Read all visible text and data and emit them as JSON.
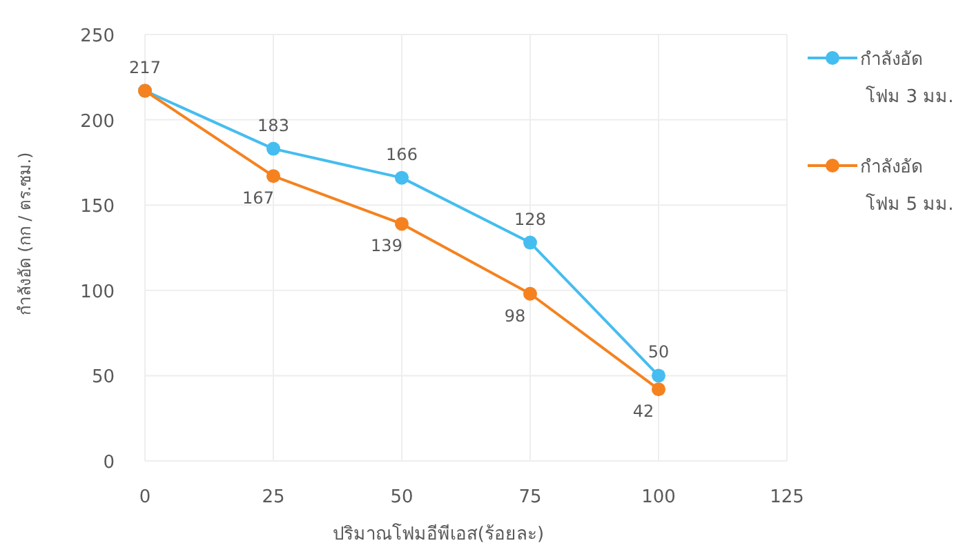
{
  "chart_data": {
    "type": "line",
    "xlabel": "ปริมาณโฟมอีพีเอส(ร้อยละ)",
    "ylabel": "กำลังอัด (กก / ตร.ซม.)",
    "x": [
      0,
      25,
      50,
      75,
      100
    ],
    "xlim": [
      0,
      125
    ],
    "xticks": [
      0,
      25,
      50,
      75,
      100,
      125
    ],
    "ylim": [
      0,
      250
    ],
    "yticks": [
      0,
      50,
      100,
      150,
      200,
      250
    ],
    "grid": true,
    "legend": "top right",
    "marker": "circle",
    "line_style": "solid",
    "series": [
      {
        "name": "กำลังอัด โฟม 3 มม.",
        "color": "#45bdf0",
        "values": [
          217,
          183,
          166,
          128,
          50
        ],
        "value_labels": [
          "217",
          "183",
          "166",
          "128",
          "50"
        ]
      },
      {
        "name": "กำลังอัด โฟม 5 มม.",
        "color": "#f5821f",
        "values": [
          217,
          167,
          139,
          98,
          42
        ],
        "value_labels": [
          null,
          "167",
          "139",
          "98",
          "42"
        ]
      }
    ]
  }
}
